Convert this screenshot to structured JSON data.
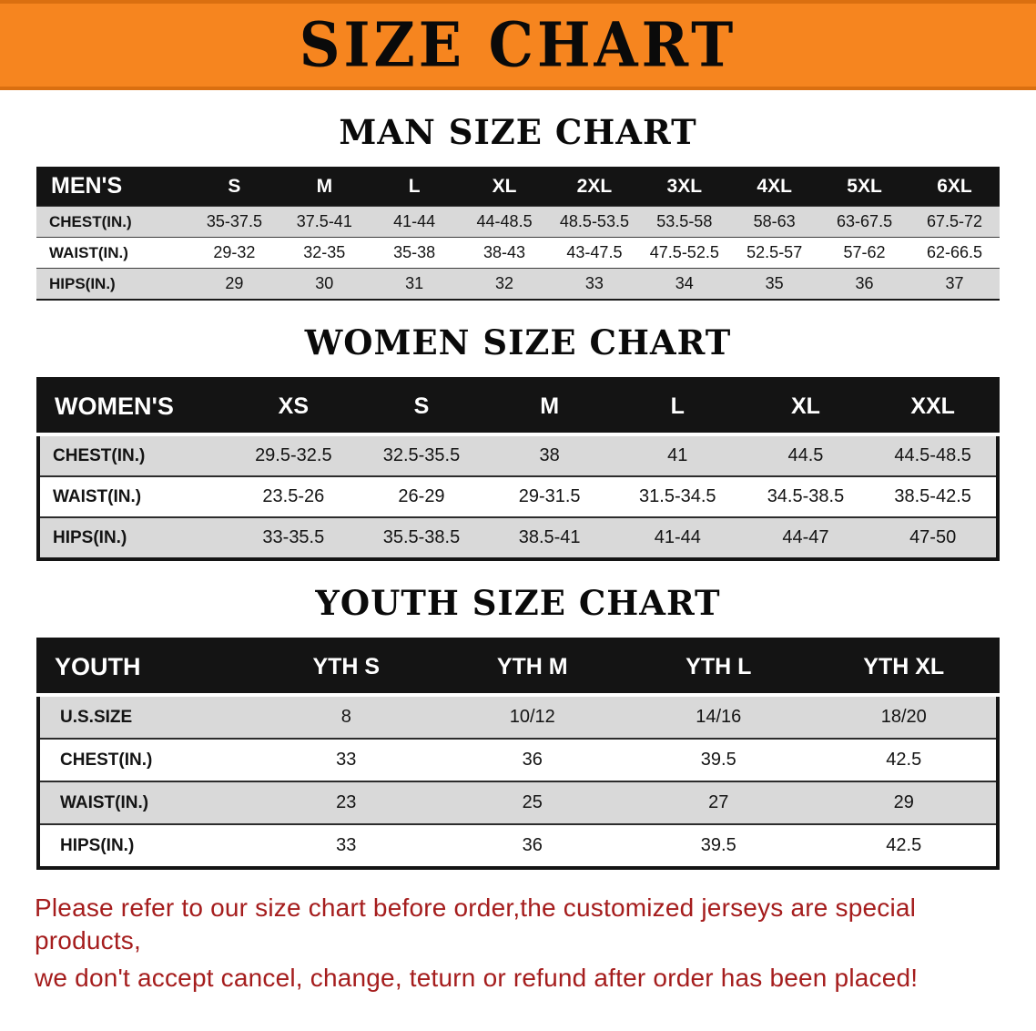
{
  "banner": {
    "title": "SIZE CHART"
  },
  "colors": {
    "banner_bg": "#f6851f",
    "header_bg": "#141414",
    "stripe": "#d9d9d9",
    "footer_red": "#a51d1d"
  },
  "tables": [
    {
      "heading": "MAN SIZE CHART",
      "header": [
        "MEN'S",
        "S",
        "M",
        "L",
        "XL",
        "2XL",
        "3XL",
        "4XL",
        "5XL",
        "6XL"
      ],
      "rows": [
        [
          "CHEST(IN.)",
          "35-37.5",
          "37.5-41",
          "41-44",
          "44-48.5",
          "48.5-53.5",
          "53.5-58",
          "58-63",
          "63-67.5",
          "67.5-72"
        ],
        [
          "WAIST(IN.)",
          "29-32",
          "32-35",
          "35-38",
          "38-43",
          "43-47.5",
          "47.5-52.5",
          "52.5-57",
          "57-62",
          "62-66.5"
        ],
        [
          "HIPS(IN.)",
          "29",
          "30",
          "31",
          "32",
          "33",
          "34",
          "35",
          "36",
          "37"
        ]
      ]
    },
    {
      "heading": "WOMEN SIZE CHART",
      "header": [
        "WOMEN'S",
        "XS",
        "S",
        "M",
        "L",
        "XL",
        "XXL"
      ],
      "rows": [
        [
          "CHEST(IN.)",
          "29.5-32.5",
          "32.5-35.5",
          "38",
          "41",
          "44.5",
          "44.5-48.5"
        ],
        [
          "WAIST(IN.)",
          "23.5-26",
          "26-29",
          "29-31.5",
          "31.5-34.5",
          "34.5-38.5",
          "38.5-42.5"
        ],
        [
          "HIPS(IN.)",
          "33-35.5",
          "35.5-38.5",
          "38.5-41",
          "41-44",
          "44-47",
          "47-50"
        ]
      ]
    },
    {
      "heading": "YOUTH SIZE CHART",
      "header": [
        "YOUTH",
        "YTH S",
        "YTH M",
        "YTH L",
        "YTH XL"
      ],
      "rows": [
        [
          "U.S.SIZE",
          "8",
          "10/12",
          "14/16",
          "18/20"
        ],
        [
          "CHEST(IN.)",
          "33",
          "36",
          "39.5",
          "42.5"
        ],
        [
          "WAIST(IN.)",
          "23",
          "25",
          "27",
          "29"
        ],
        [
          "HIPS(IN.)",
          "33",
          "36",
          "39.5",
          "42.5"
        ]
      ]
    }
  ],
  "footer": {
    "lines": [
      "Please refer to our size chart before order,the customized jerseys are special products,",
      "we don't accept cancel, change, teturn or refund after order has been placed!"
    ]
  }
}
